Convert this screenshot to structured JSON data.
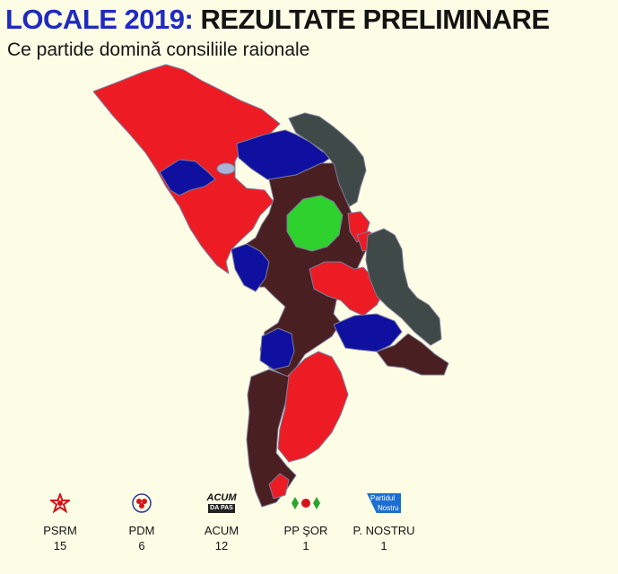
{
  "header": {
    "title_part1": "LOCALE 2019:",
    "title_part2": "REZULTATE PRELIMINARE",
    "subtitle": "Ce partide domină consiliile raionale"
  },
  "colors": {
    "psrm": "#ed1c24",
    "pdm": "#1010a0",
    "acum": "#4a1f22",
    "pp_sor": "#2ed12e",
    "p_nostru": "#3f4a48",
    "background": "#fdfde6",
    "border": "#7b7b9b"
  },
  "legend": [
    {
      "key": "psrm",
      "label": "PSRM",
      "count": "15",
      "icon": "rose-star-icon"
    },
    {
      "key": "pdm",
      "label": "PDM",
      "count": "6",
      "icon": "pdm-flower-icon"
    },
    {
      "key": "acum",
      "label": "ACUM",
      "count": "12",
      "icon": "acum-logo",
      "logo_text": "ACUM",
      "logo_sub": "DA PAS"
    },
    {
      "key": "pp_sor",
      "label": "PP ŞOR",
      "count": "1",
      "icon": "sor-ornament-icon"
    },
    {
      "key": "p_nostru",
      "label": "P. NOSTRU",
      "count": "1",
      "icon": "nostru-logo",
      "logo_text": "Partidul",
      "logo_sub": "Nostru"
    }
  ]
}
